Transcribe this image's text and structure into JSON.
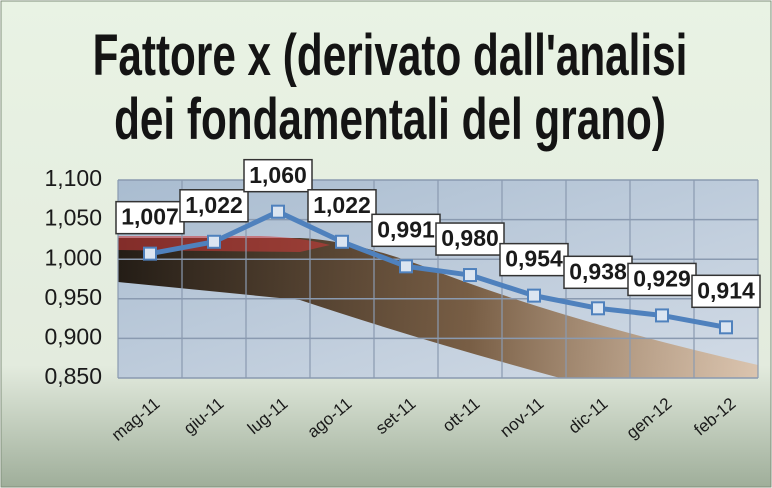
{
  "chart_data": {
    "type": "line",
    "title": "Fattore x (derivato dall'analisi dei fondamentali del grano)",
    "categories": [
      "mag-11",
      "giu-11",
      "lug-11",
      "ago-11",
      "set-11",
      "ott-11",
      "nov-11",
      "dic-11",
      "gen-12",
      "feb-12"
    ],
    "series": [
      {
        "name": "Fattore x",
        "color": "#4f81bd",
        "values": [
          1.007,
          1.022,
          1.06,
          1.022,
          0.991,
          0.98,
          0.954,
          0.938,
          0.929,
          0.914
        ],
        "value_labels": [
          "1,007",
          "1,022",
          "1,060",
          "1,022",
          "0,991",
          "0,980",
          "0,954",
          "0,938",
          "0,929",
          "0,914"
        ]
      }
    ],
    "ylim": [
      0.85,
      1.1
    ],
    "yticks": [
      {
        "value": 0.85,
        "label": "0,850"
      },
      {
        "value": 0.9,
        "label": "0,900"
      },
      {
        "value": 0.95,
        "label": "0,950"
      },
      {
        "value": 1.0,
        "label": "1,000"
      },
      {
        "value": 1.05,
        "label": "1,050"
      },
      {
        "value": 1.1,
        "label": "1,100"
      }
    ],
    "grid": true
  }
}
